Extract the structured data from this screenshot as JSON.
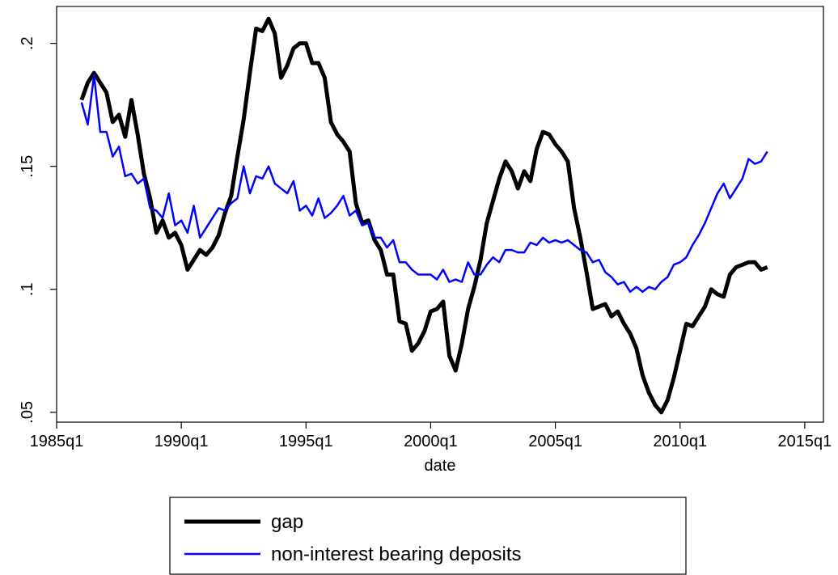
{
  "chart_data": {
    "type": "line",
    "x_label": "date",
    "x": [
      "1986q1",
      "1986q2",
      "1986q3",
      "1986q4",
      "1987q1",
      "1987q2",
      "1987q3",
      "1987q4",
      "1988q1",
      "1988q2",
      "1988q3",
      "1988q4",
      "1989q1",
      "1989q2",
      "1989q3",
      "1989q4",
      "1990q1",
      "1990q2",
      "1990q3",
      "1990q4",
      "1991q1",
      "1991q2",
      "1991q3",
      "1991q4",
      "1992q1",
      "1992q2",
      "1992q3",
      "1992q4",
      "1993q1",
      "1993q2",
      "1993q3",
      "1993q4",
      "1994q1",
      "1994q2",
      "1994q3",
      "1994q4",
      "1995q1",
      "1995q2",
      "1995q3",
      "1995q4",
      "1996q1",
      "1996q2",
      "1996q3",
      "1996q4",
      "1997q1",
      "1997q2",
      "1997q3",
      "1997q4",
      "1998q1",
      "1998q2",
      "1998q3",
      "1998q4",
      "1999q1",
      "1999q2",
      "1999q3",
      "1999q4",
      "2000q1",
      "2000q2",
      "2000q3",
      "2000q4",
      "2001q1",
      "2001q2",
      "2001q3",
      "2001q4",
      "2002q1",
      "2002q2",
      "2002q3",
      "2002q4",
      "2003q1",
      "2003q2",
      "2003q3",
      "2003q4",
      "2004q1",
      "2004q2",
      "2004q3",
      "2004q4",
      "2005q1",
      "2005q2",
      "2005q3",
      "2005q4",
      "2006q1",
      "2006q2",
      "2006q3",
      "2006q4",
      "2007q1",
      "2007q2",
      "2007q3",
      "2007q4",
      "2008q1",
      "2008q2",
      "2008q3",
      "2008q4",
      "2009q1",
      "2009q2",
      "2009q3",
      "2009q4",
      "2010q1",
      "2010q2",
      "2010q3",
      "2010q4",
      "2011q1",
      "2011q2",
      "2011q3",
      "2011q4",
      "2012q1",
      "2012q2",
      "2012q3",
      "2012q4",
      "2013q1",
      "2013q2",
      "2013q3"
    ],
    "series": [
      {
        "name": "gap",
        "color": "#000000",
        "width": 5,
        "values": [
          0.177,
          0.184,
          0.188,
          0.184,
          0.18,
          0.168,
          0.171,
          0.162,
          0.177,
          0.163,
          0.147,
          0.137,
          0.123,
          0.128,
          0.121,
          0.123,
          0.118,
          0.108,
          0.112,
          0.116,
          0.114,
          0.117,
          0.122,
          0.131,
          0.138,
          0.154,
          0.169,
          0.188,
          0.206,
          0.205,
          0.21,
          0.204,
          0.186,
          0.191,
          0.198,
          0.2,
          0.2,
          0.192,
          0.192,
          0.186,
          0.168,
          0.163,
          0.16,
          0.156,
          0.135,
          0.127,
          0.128,
          0.12,
          0.116,
          0.106,
          0.106,
          0.087,
          0.086,
          0.075,
          0.078,
          0.083,
          0.091,
          0.092,
          0.095,
          0.073,
          0.067,
          0.078,
          0.092,
          0.101,
          0.112,
          0.127,
          0.136,
          0.145,
          0.152,
          0.148,
          0.141,
          0.148,
          0.144,
          0.157,
          0.164,
          0.163,
          0.159,
          0.156,
          0.152,
          0.133,
          0.121,
          0.107,
          0.092,
          0.093,
          0.094,
          0.089,
          0.091,
          0.086,
          0.082,
          0.076,
          0.065,
          0.058,
          0.053,
          0.05,
          0.055,
          0.064,
          0.075,
          0.086,
          0.085,
          0.089,
          0.093,
          0.1,
          0.098,
          0.097,
          0.106,
          0.109,
          0.11,
          0.111,
          0.111,
          0.108,
          0.109
        ]
      },
      {
        "name": "non-interest bearing deposits",
        "color": "#0000ff",
        "width": 2.5,
        "values": [
          0.176,
          0.167,
          0.187,
          0.164,
          0.164,
          0.154,
          0.158,
          0.146,
          0.147,
          0.143,
          0.145,
          0.133,
          0.132,
          0.129,
          0.139,
          0.126,
          0.128,
          0.123,
          0.134,
          0.121,
          0.125,
          0.129,
          0.133,
          0.132,
          0.135,
          0.137,
          0.15,
          0.139,
          0.146,
          0.145,
          0.15,
          0.143,
          0.141,
          0.139,
          0.144,
          0.132,
          0.134,
          0.13,
          0.137,
          0.129,
          0.131,
          0.134,
          0.138,
          0.13,
          0.132,
          0.126,
          0.127,
          0.121,
          0.121,
          0.117,
          0.12,
          0.111,
          0.111,
          0.108,
          0.106,
          0.106,
          0.106,
          0.104,
          0.108,
          0.103,
          0.104,
          0.103,
          0.111,
          0.106,
          0.106,
          0.11,
          0.113,
          0.111,
          0.116,
          0.116,
          0.115,
          0.115,
          0.119,
          0.118,
          0.121,
          0.119,
          0.12,
          0.119,
          0.12,
          0.118,
          0.116,
          0.115,
          0.111,
          0.112,
          0.107,
          0.105,
          0.102,
          0.103,
          0.099,
          0.101,
          0.099,
          0.101,
          0.1,
          0.103,
          0.105,
          0.11,
          0.111,
          0.113,
          0.118,
          0.122,
          0.127,
          0.133,
          0.139,
          0.143,
          0.137,
          0.141,
          0.145,
          0.153,
          0.151,
          0.152,
          0.156
        ]
      }
    ],
    "xlim": [
      "1985q1",
      "2015q4"
    ],
    "xticks": [
      "1985q1",
      "1990q1",
      "1995q1",
      "2000q1",
      "2005q1",
      "2010q1",
      "2015q1"
    ],
    "ylim": [
      0.046,
      0.215
    ],
    "yticks": [
      {
        "value": 0.05,
        "label": ".05"
      },
      {
        "value": 0.1,
        "label": ".1"
      },
      {
        "value": 0.15,
        "label": ".15"
      },
      {
        "value": 0.2,
        "label": ".2"
      }
    ],
    "grid": false,
    "legend": "bottom"
  }
}
